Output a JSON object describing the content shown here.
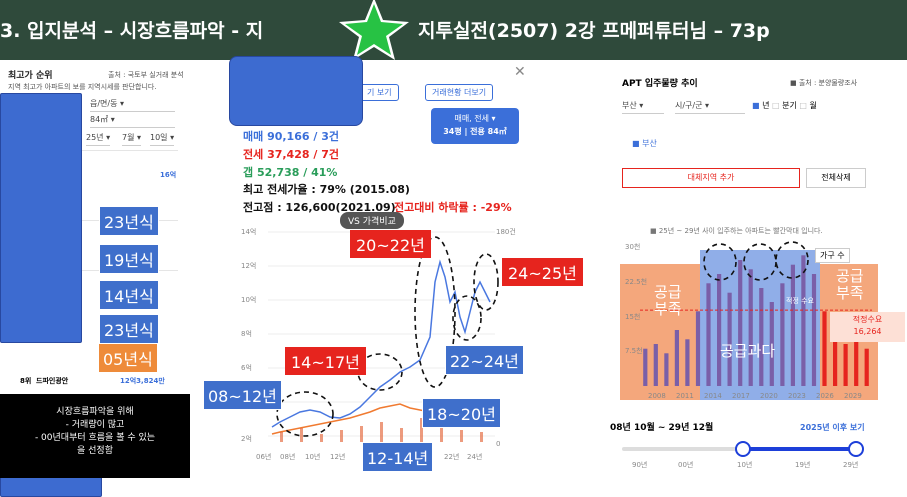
{
  "header": {
    "left_title": "3. 입지분석 – 시장흐름파악 - 지",
    "right_title": "지투실전(2507) 2강 프메퍼튜터님 – 73p"
  },
  "left_panel": {
    "title": "최고가 순위",
    "source": "출처 : 국토부 실거래 분석",
    "subtitle": "지역 최고가 아파트의 보를 지역시세를 판단합니다.",
    "filters": [
      "읍/면/동",
      "84㎡",
      "25년",
      "7월",
      "10일"
    ],
    "rows": [
      {
        "rank": "",
        "price": "16억"
      },
      {
        "rank": "8위",
        "name": "드파인광안",
        "year": "2024 입주",
        "price": "12억3,824만"
      }
    ],
    "tags": [
      "23년식",
      "19년식",
      "14년식",
      "23년식",
      "05년식"
    ],
    "note_lines": [
      "시장흐름파악을 위해",
      "-  거래량이 많고",
      "-  00년대부터 흐름을 볼 수 있는",
      "을 선정함"
    ]
  },
  "mid_panel": {
    "btn_transactions_a": "거래현황 더보기",
    "btn_partial": "기 보기",
    "type_chip": "매매, 전세",
    "size_chip": "34평 | 전용 84㎡",
    "sale": "매매 90,166 / 3건",
    "jeonse": "전세 37,428 / 7건",
    "gap": "갭  52,738 / 41%",
    "max_ratio": "최고 전세가율 : 79% (2015.08)",
    "peak_label": "전고점 : 126,600(2021.09)",
    "drop_label": "전고대비 하락률 : -29%",
    "vs_button": "VS 가격비교",
    "y_left": [
      "14억",
      "12억",
      "10억",
      "8억",
      "6억",
      "4억",
      "2억"
    ],
    "y_right": [
      "180건",
      "160건",
      "140건",
      "120건",
      "100건",
      "",
      "",
      "",
      "0"
    ],
    "x_ticks": [
      "06년",
      "08년",
      "10년",
      "12년",
      "14",
      "",
      "22년",
      "24년"
    ],
    "period_tags": {
      "p1": "08~12년",
      "p2": "12-14년",
      "p3": "14~17년",
      "p4": "18~20년",
      "p5": "20~22년",
      "p6": "22~24년",
      "p7": "24~25년"
    }
  },
  "right_panel": {
    "title": "APT 입주물량 추이",
    "source": "■ 출처 : 분양물량조사",
    "region": "부산",
    "district": "시/구/군",
    "period_options": [
      "년",
      "분기",
      "월"
    ],
    "legend": "■ 부산",
    "add_region": "대체지역 추가",
    "delete_all": "전체삭제",
    "note": "■ 25년 ~ 29년 사이 입주하는 아파트는 빨간막대 입니다.",
    "y_ticks": [
      "30천",
      "22.5천",
      "15천",
      "7.5천"
    ],
    "x_ticks": [
      "2008",
      "2011",
      "2014",
      "2017",
      "2020",
      "2023",
      "2026",
      "2029"
    ],
    "series_label": "가구 수",
    "proper_label": "적정수요",
    "proper_value": "16,264",
    "proper_small": "적정 수요",
    "shortage_left": "공급\n부족",
    "shortage_right": "공급\n부족",
    "oversupply": "공급과다",
    "range_label": "08년 10월 ~ 29년 12월",
    "after_link": "2025년 이후 보기",
    "slider_ticks": [
      "90년",
      "00년",
      "10년",
      "19년",
      "29년"
    ],
    "slider_value": "0.78"
  },
  "colors": {
    "header_bg": "#2f4a3b",
    "tag_blue": "#3f6fcb",
    "tag_red": "#e6241e",
    "tag_orange": "#ee8b3a",
    "star": "#27c244"
  },
  "chart_data": {
    "type": "bar",
    "title": "APT 입주물량 추이",
    "categories": [
      "2008",
      "2009",
      "2010",
      "2011",
      "2012",
      "2013",
      "2014",
      "2015",
      "2016",
      "2017",
      "2018",
      "2019",
      "2020",
      "2021",
      "2022",
      "2023",
      "2024",
      "2025",
      "2026",
      "2027",
      "2028",
      "2029"
    ],
    "values": [
      8,
      9,
      7,
      12,
      10,
      16,
      22,
      24,
      20,
      27,
      25,
      21,
      18,
      22,
      26,
      28,
      24,
      16,
      12,
      9,
      14,
      8
    ],
    "ylim": [
      0,
      30
    ],
    "ylabel": "가구 수",
    "proper_demand": 16.264
  }
}
